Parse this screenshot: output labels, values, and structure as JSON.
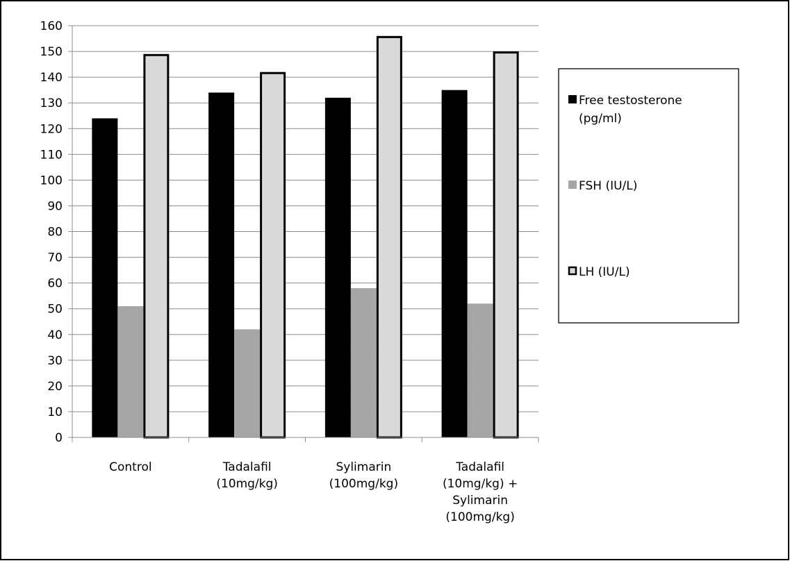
{
  "chart_data": {
    "type": "bar",
    "title": "",
    "xlabel": "",
    "ylabel": "",
    "ylim": [
      0,
      160
    ],
    "y_ticks": [
      0,
      10,
      20,
      30,
      40,
      50,
      60,
      70,
      80,
      90,
      100,
      110,
      120,
      130,
      140,
      150,
      160
    ],
    "y_tick_labels": [
      "0",
      "10",
      "20",
      "30",
      "40",
      "50",
      "60",
      "70",
      "80",
      "90",
      "100",
      "110",
      "120",
      "130",
      "140",
      "150",
      "160"
    ],
    "grid": true,
    "legend_position": "right",
    "categories": [
      [
        "Control"
      ],
      [
        "Tadalafil",
        "(10mg/kg)"
      ],
      [
        "Sylimarin",
        "(100mg/kg)"
      ],
      [
        "Tadalafil",
        "(10mg/kg) +",
        "Sylimarin",
        "(100mg/kg)"
      ]
    ],
    "series": [
      {
        "name": [
          "Free testosterone",
          "(pg/ml)"
        ],
        "values": [
          124,
          134,
          132,
          135
        ],
        "fill": "#000000",
        "stroke": "#000000"
      },
      {
        "name": [
          "FSH (IU/L)"
        ],
        "values": [
          51,
          42,
          58,
          52
        ],
        "fill": "#a6a6a6",
        "stroke": "#a6a6a6"
      },
      {
        "name": [
          "LH  (IU/L)"
        ],
        "values": [
          149,
          142,
          156,
          150
        ],
        "fill": "#d9d9d9",
        "stroke": "#000000"
      }
    ]
  }
}
